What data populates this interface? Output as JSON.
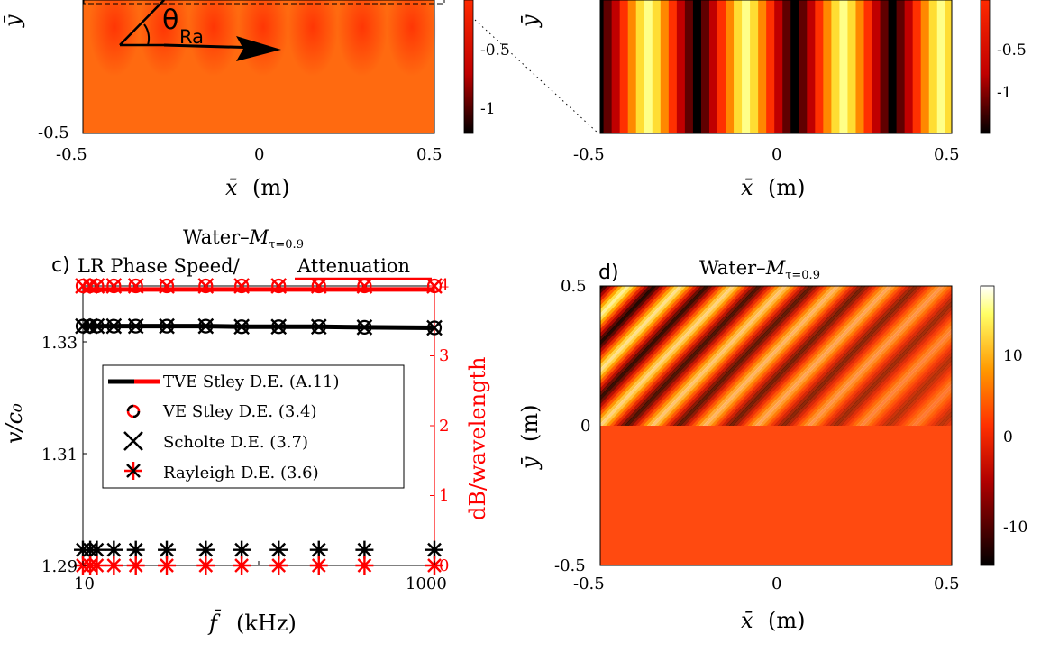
{
  "panel_a": {
    "angle_label": "θ",
    "angle_sub": "Ra",
    "x_ticks": [
      "-0.5",
      "0",
      "0.5"
    ],
    "y_ticks": [
      "-0.5"
    ],
    "xlabel_var": "x̄",
    "xlabel_unit": "(m)",
    "ylabel_var": "ȳ",
    "colorbar_ticks": [
      "-0.5",
      "-1"
    ]
  },
  "panel_b": {
    "x_ticks": [
      "-0.5",
      "0",
      "0.5"
    ],
    "xlabel_var": "x̄",
    "xlabel_unit": "(m)",
    "ylabel_var": "ȳ",
    "colorbar_ticks": [
      "-0.5",
      "-1"
    ]
  },
  "panel_c": {
    "letter": "c)",
    "title_line1_main": "Water–",
    "title_line1_sym": "M",
    "title_line1_sub": "τ=0.9",
    "title_line2_a": "LR Phase Speed/",
    "title_line2_b": "Attenuation",
    "x_ticks": [
      "10",
      "1000"
    ],
    "y_ticks_left": [
      "1.29",
      "1.31",
      "1.33"
    ],
    "y_ticks_right": [
      "0",
      "1",
      "2",
      "3",
      "4"
    ],
    "xlabel_var": "f̄",
    "xlabel_unit": "(kHz)",
    "ylabel_left": "v/c₀",
    "ylabel_right": "dB/wavelength",
    "legend": [
      {
        "label": "TVE Stley D.E. (A.11)"
      },
      {
        "label": "VE Stley D.E. (3.4)"
      },
      {
        "label": "Scholte D.E. (3.7)"
      },
      {
        "label": "Rayleigh D.E. (3.6)"
      }
    ]
  },
  "panel_d": {
    "letter": "d)",
    "title_main": "Water–",
    "title_sym": "M",
    "title_sub": "τ=0.9",
    "x_ticks": [
      "-0.5",
      "0",
      "0.5"
    ],
    "y_ticks": [
      "0.5",
      "0",
      "-0.5"
    ],
    "xlabel_var": "x̄",
    "xlabel_unit": "(m)",
    "ylabel_var": "ȳ",
    "ylabel_unit": "(m)",
    "colorbar_ticks": [
      "10",
      "0",
      "-10"
    ]
  },
  "colors": {
    "black_series": "#000000",
    "red_series": "#ff0000",
    "hot_dark": "#000000",
    "hot_red": "#e00000",
    "hot_orange": "#ff6600",
    "hot_yellow": "#ffff66",
    "hot_white": "#ffffff"
  },
  "chart_data": [
    {
      "type": "line",
      "panel": "c",
      "xscale": "log",
      "xlim": [
        10,
        1000
      ],
      "ylim_left": [
        1.29,
        1.34
      ],
      "ylim_right": [
        0,
        4
      ],
      "x": [
        10,
        11,
        12,
        15,
        20,
        30,
        50,
        80,
        130,
        220,
        400,
        1000
      ],
      "series": [
        {
          "name": "TVE Stley D.E. (A.11)",
          "axis": "left",
          "color": "#000000",
          "marker": "line",
          "values": [
            1.3328,
            1.3328,
            1.3328,
            1.3328,
            1.3328,
            1.3328,
            1.3328,
            1.3327,
            1.3327,
            1.3327,
            1.3326,
            1.3325
          ]
        },
        {
          "name": "TVE Stley D.E. (A.11)",
          "axis": "right",
          "color": "#ff0000",
          "marker": "line",
          "values": [
            3.95,
            3.95,
            3.95,
            3.95,
            3.95,
            3.95,
            3.95,
            3.95,
            3.95,
            3.95,
            3.95,
            3.95
          ]
        },
        {
          "name": "VE Stley D.E. (3.4)",
          "axis": "left",
          "color": "#000000",
          "marker": "circle",
          "values": [
            1.3328,
            1.3328,
            1.3328,
            1.3328,
            1.3328,
            1.3328,
            1.3328,
            1.3327,
            1.3327,
            1.3327,
            1.3326,
            1.3325
          ]
        },
        {
          "name": "VE Stley D.E. (3.4)",
          "axis": "right",
          "color": "#ff0000",
          "marker": "circle",
          "values": [
            4,
            4,
            4,
            4,
            4,
            4,
            4,
            4,
            4,
            4,
            4,
            4
          ]
        },
        {
          "name": "Scholte D.E. (3.7)",
          "axis": "left",
          "color": "#000000",
          "marker": "x",
          "values": [
            1.3328,
            1.3328,
            1.3328,
            1.3328,
            1.3328,
            1.3328,
            1.3328,
            1.3327,
            1.3327,
            1.3327,
            1.3326,
            1.3325
          ]
        },
        {
          "name": "Scholte D.E. (3.7)",
          "axis": "right",
          "color": "#ff0000",
          "marker": "x",
          "values": [
            4,
            4,
            4,
            4,
            4,
            4,
            4,
            4,
            4,
            4,
            4,
            4
          ]
        },
        {
          "name": "Rayleigh D.E. (3.6)",
          "axis": "left",
          "color": "#000000",
          "marker": "star",
          "values": [
            1.2928,
            1.2928,
            1.2928,
            1.2928,
            1.2928,
            1.2928,
            1.2928,
            1.2928,
            1.2928,
            1.2928,
            1.2928,
            1.2928
          ]
        },
        {
          "name": "Rayleigh D.E. (3.6)",
          "axis": "right",
          "color": "#ff0000",
          "marker": "star",
          "values": [
            0,
            0,
            0,
            0,
            0,
            0,
            0,
            0,
            0,
            0,
            0,
            0
          ]
        }
      ]
    },
    {
      "type": "heatmap",
      "panel": "d",
      "xlim": [
        -0.5,
        0.5
      ],
      "ylim": [
        -0.5,
        0.5
      ],
      "clim": [
        -15,
        17
      ],
      "colorbar_ticks": [
        10,
        0,
        -10
      ]
    }
  ]
}
